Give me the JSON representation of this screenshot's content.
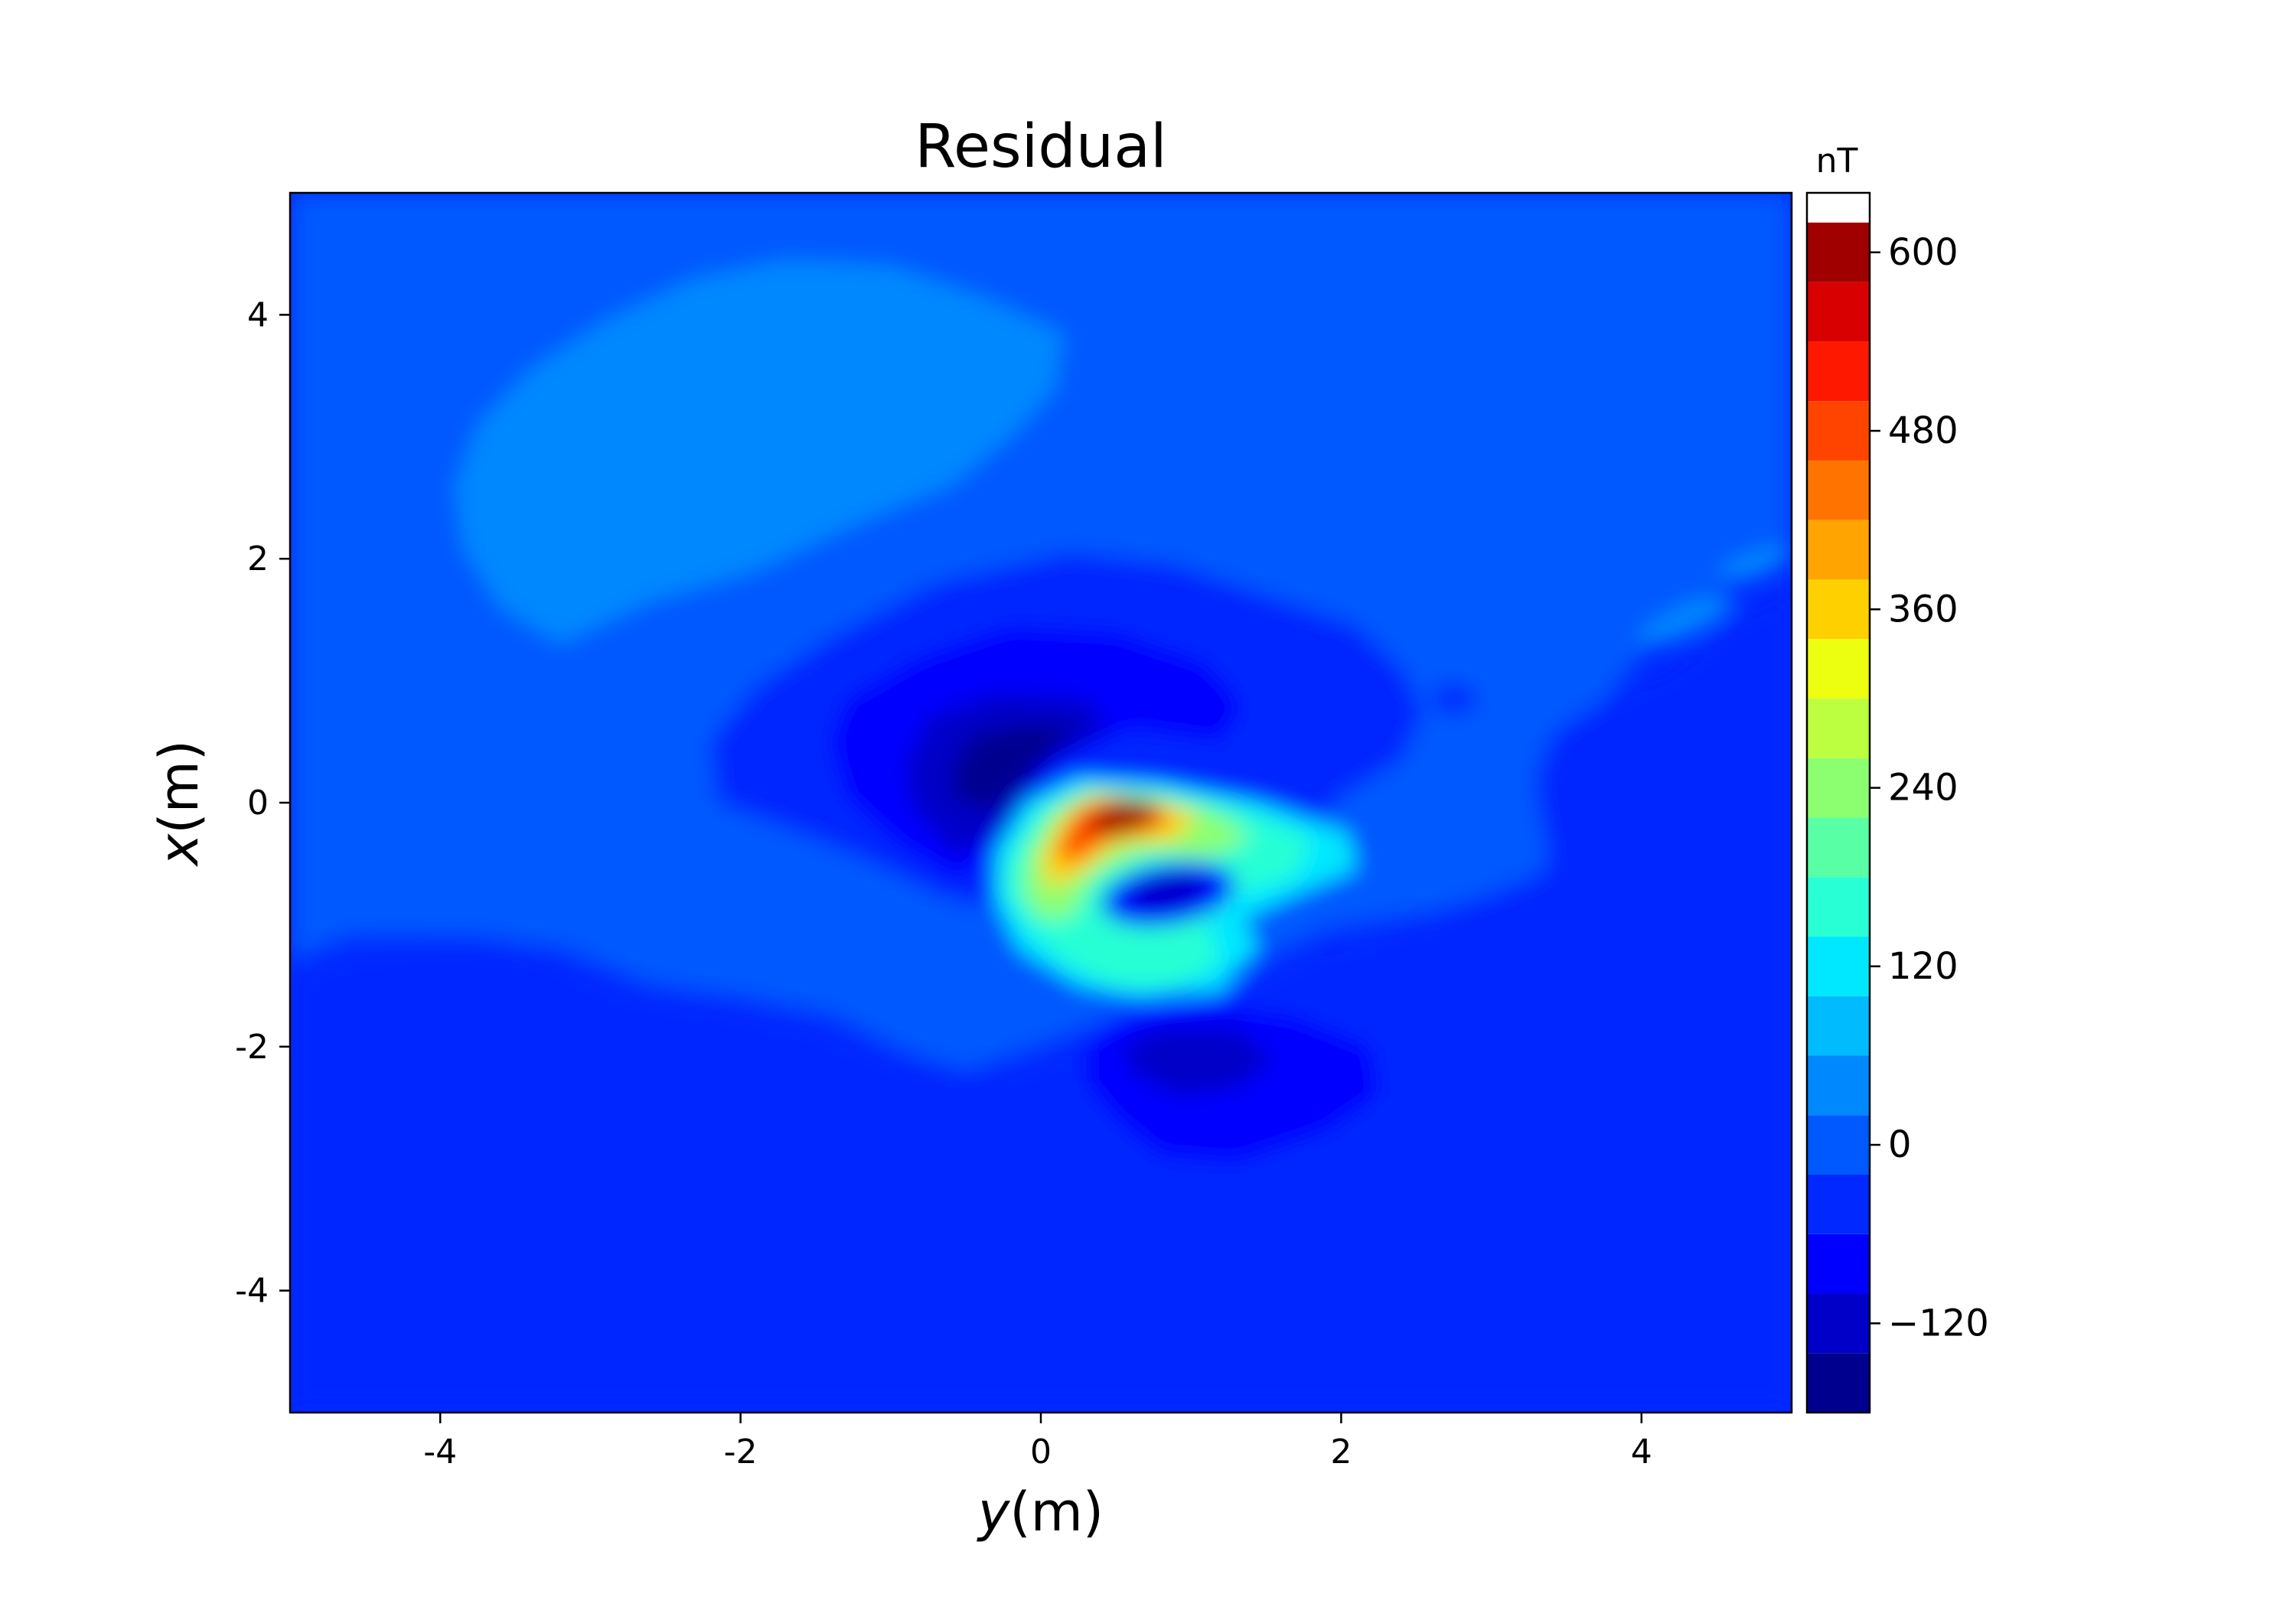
{
  "chart_data": {
    "type": "contourf",
    "title": "Residual",
    "xlabel_var": "y",
    "xlabel_unit": "(m)",
    "ylabel_var": "x",
    "ylabel_unit": "(m)",
    "xlim": [
      -5,
      5
    ],
    "ylim": [
      -5,
      5
    ],
    "xticks": [
      -4,
      -2,
      0,
      2,
      4
    ],
    "xtick_labels": [
      "-4",
      "-2",
      "0",
      "2",
      "4"
    ],
    "yticks": [
      -4,
      -2,
      0,
      2,
      4
    ],
    "ytick_labels": [
      "-4",
      "-2",
      "0",
      "2",
      "4"
    ],
    "grid": false,
    "colorbar": {
      "unit": "nT",
      "colormap": "jet",
      "range": [
        -180,
        640
      ],
      "levels": [
        -180,
        -140,
        -100,
        -60,
        -20,
        20,
        60,
        100,
        140,
        180,
        220,
        260,
        300,
        340,
        380,
        420,
        460,
        500,
        540,
        580,
        620,
        660
      ],
      "ticks": [
        -120,
        0,
        120,
        240,
        360,
        480,
        600
      ],
      "tick_labels": [
        "−120",
        "0",
        "120",
        "240",
        "360",
        "480",
        "600"
      ],
      "colors": [
        "#00008f",
        "#0000c8",
        "#0000ff",
        "#0028ff",
        "#0058ff",
        "#0088ff",
        "#00bcff",
        "#00e8ff",
        "#28ffd4",
        "#58ffa4",
        "#8cff70",
        "#bcff40",
        "#ecff10",
        "#ffd000",
        "#ffa400",
        "#ff7400",
        "#ff4400",
        "#ff1800",
        "#d80000",
        "#a00000"
      ]
    },
    "background_value": -40,
    "features": [
      {
        "kind": "positive-lobe",
        "center": [
          2.8,
          -2.2
        ],
        "peak": 40,
        "note": "broad weak positive"
      },
      {
        "kind": "ring",
        "center": [
          0.0,
          0.0
        ],
        "peak": -10
      },
      {
        "kind": "negative-lobe",
        "center": [
          0.3,
          -0.2
        ],
        "peak": -170
      },
      {
        "kind": "positive-lobe",
        "center": [
          -0.1,
          0.5
        ],
        "peak": 600
      },
      {
        "kind": "negative-lobe",
        "center": [
          -0.7,
          0.9
        ],
        "peak": -110
      },
      {
        "kind": "positive-lobe",
        "center": [
          -1.4,
          0.8
        ],
        "peak": 140
      },
      {
        "kind": "negative-lobe",
        "center": [
          -2.2,
          0.9
        ],
        "peak": -100
      }
    ]
  }
}
